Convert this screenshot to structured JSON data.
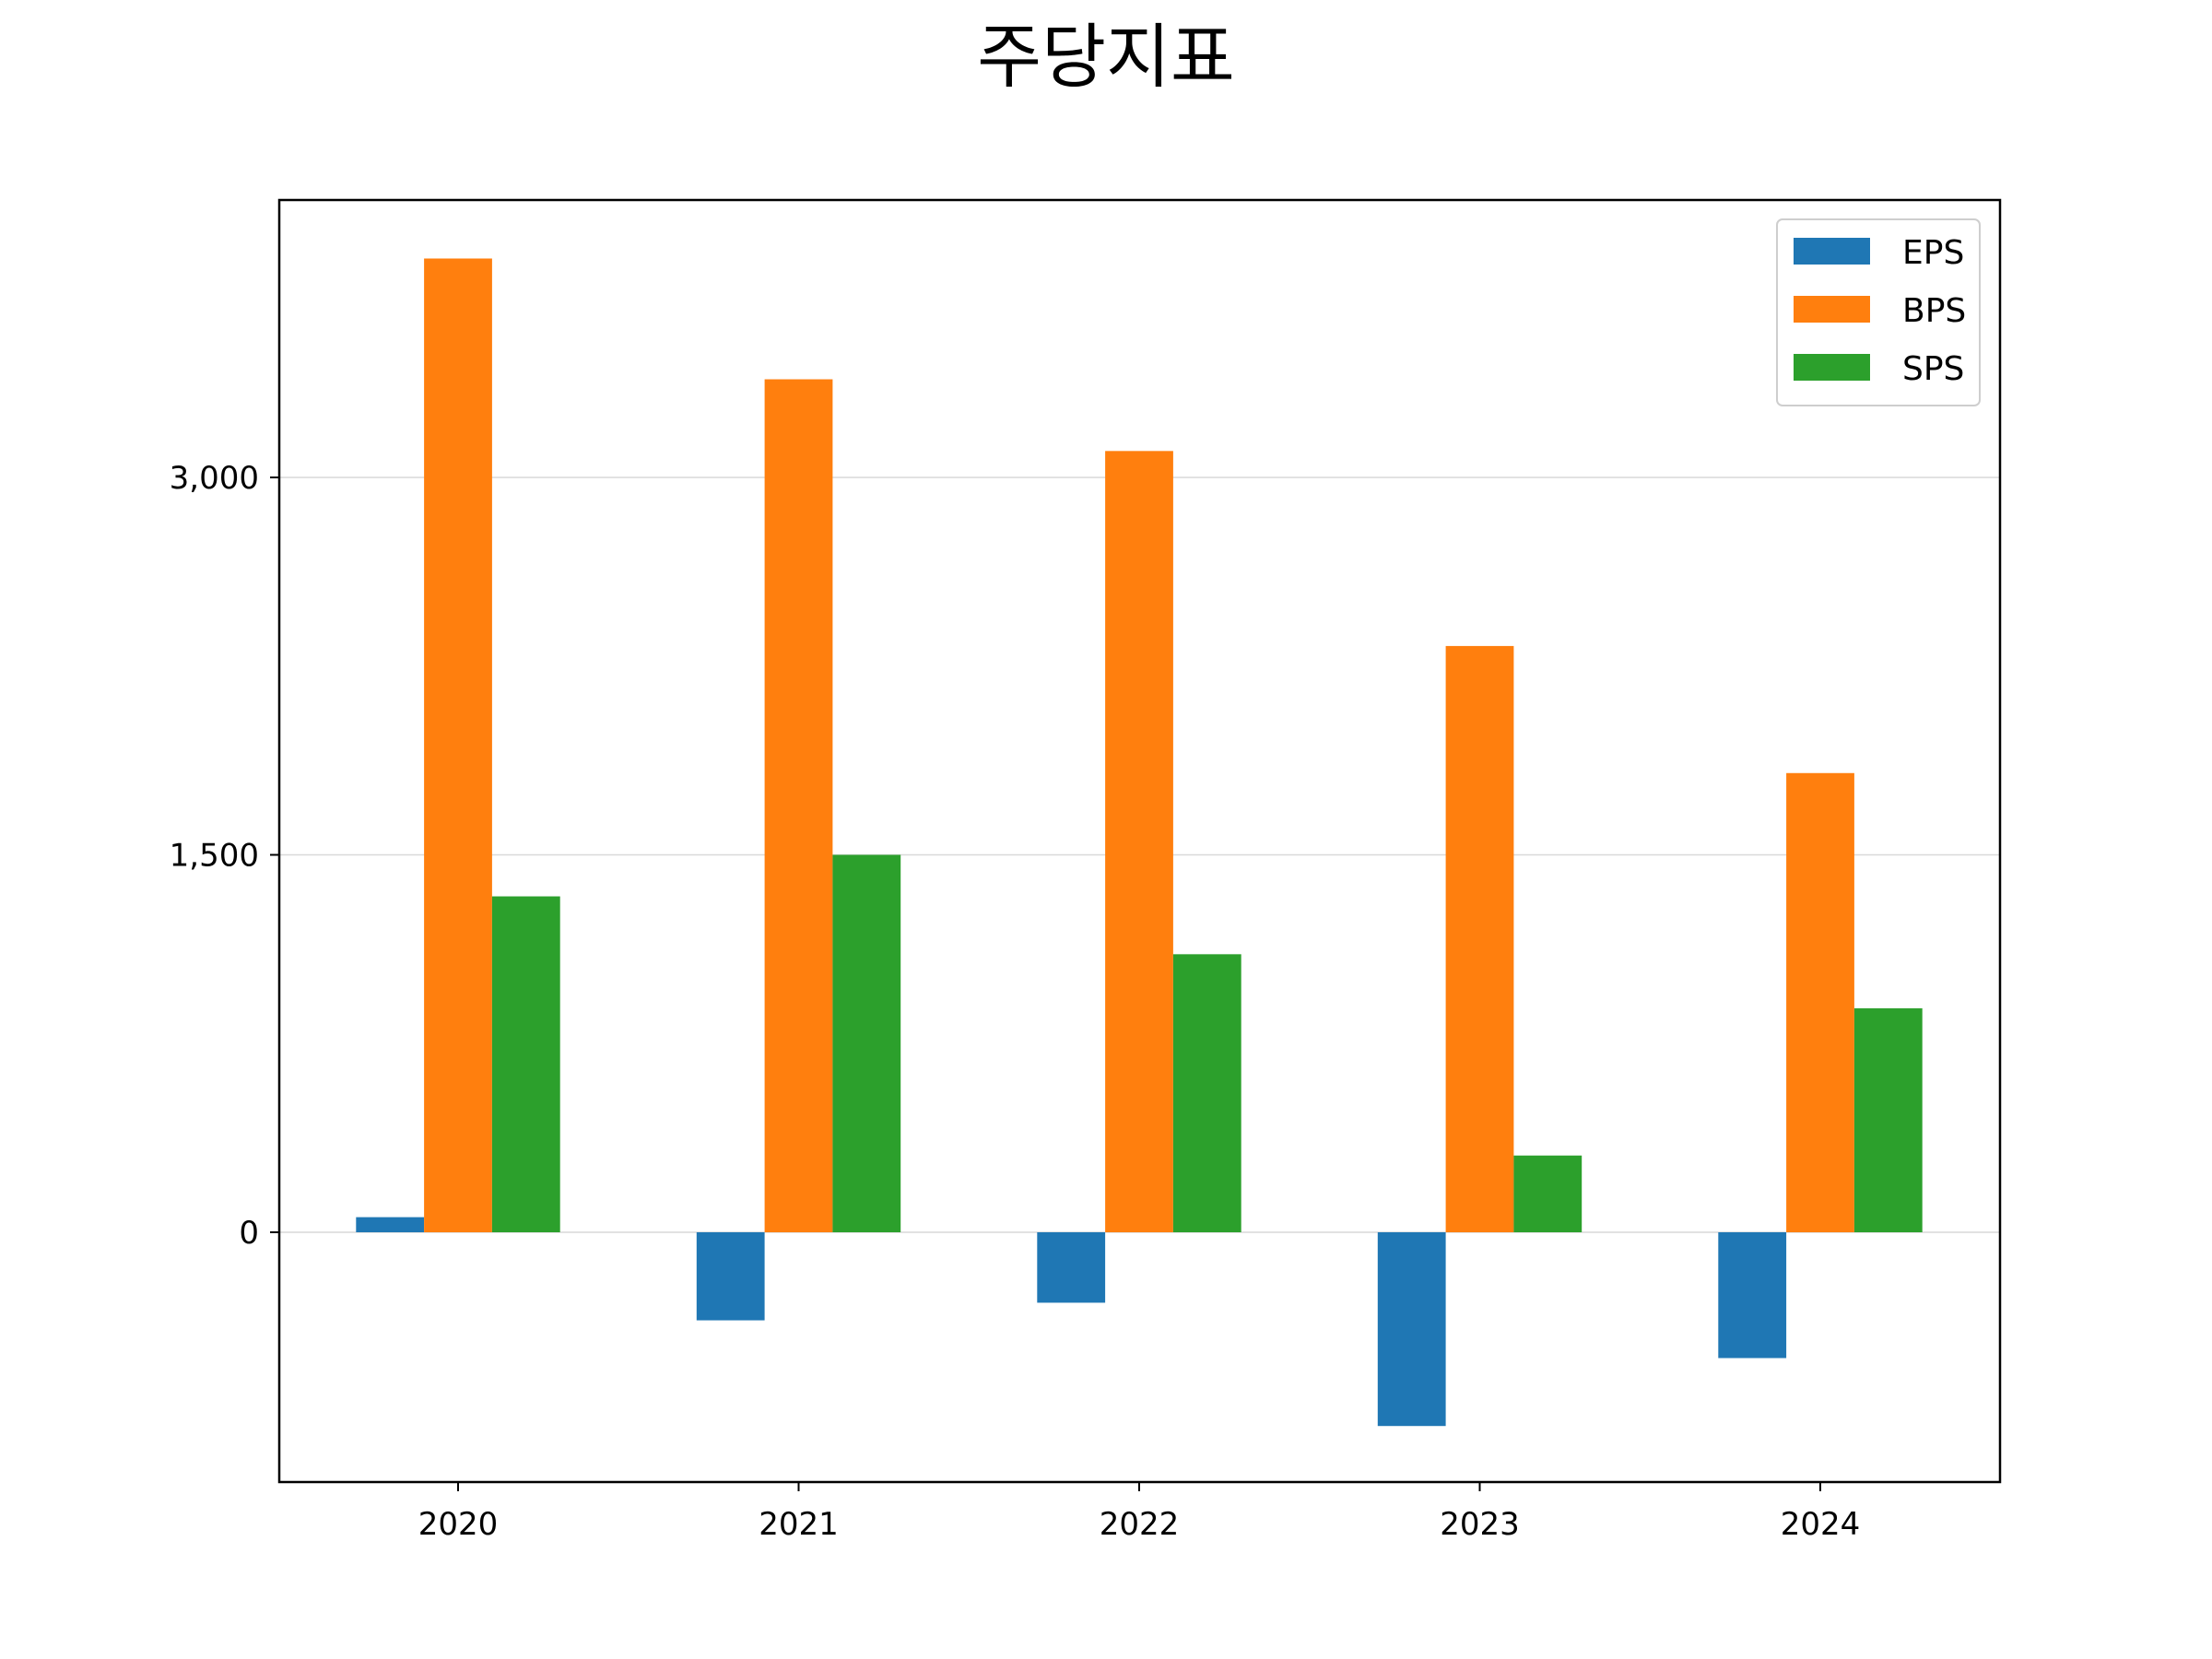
{
  "chart_data": {
    "type": "bar",
    "title": "주당지표",
    "xlabel": "",
    "ylabel": "",
    "categories": [
      "2020",
      "2021",
      "2022",
      "2023",
      "2024"
    ],
    "series": [
      {
        "name": "EPS",
        "color": "#1f77b4",
        "values": [
          60,
          -350,
          -280,
          -770,
          -500
        ]
      },
      {
        "name": "BPS",
        "color": "#ff7f0e",
        "values": [
          3870,
          3390,
          3105,
          2330,
          1825
        ]
      },
      {
        "name": "SPS",
        "color": "#2ca02c",
        "values": [
          1335,
          1500,
          1105,
          305,
          890
        ]
      }
    ],
    "yticks": [
      0,
      1500,
      3000
    ],
    "ytick_labels": [
      "0",
      "1,500",
      "3,000"
    ],
    "ylim": [
      -1000,
      4100
    ],
    "grid": "horizontal",
    "legend_position": "top-right"
  }
}
